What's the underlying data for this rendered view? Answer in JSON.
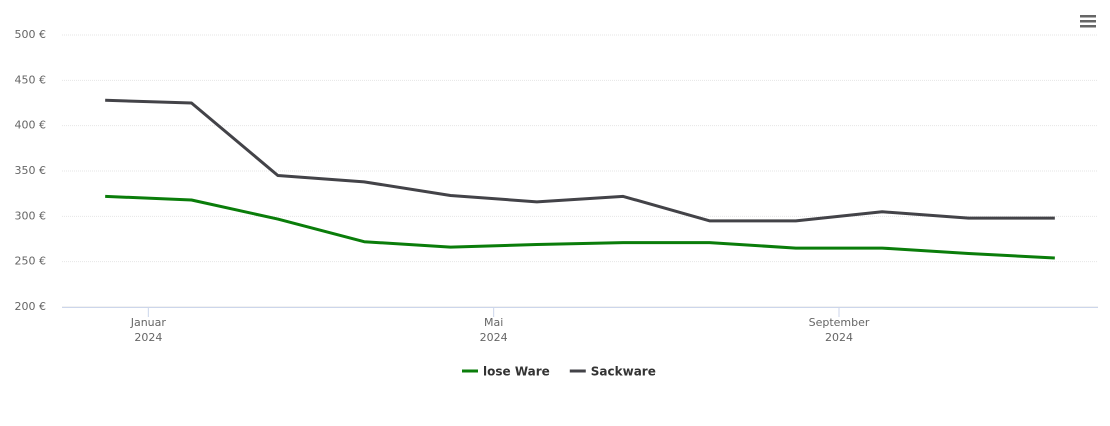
{
  "chart_data": {
    "type": "line",
    "x": [
      "2023-12",
      "2024-01",
      "2024-02",
      "2024-03",
      "2024-04",
      "2024-05",
      "2024-06",
      "2024-07",
      "2024-08",
      "2024-09",
      "2024-10",
      "2024-11"
    ],
    "series": [
      {
        "name": "lose Ware",
        "color": "#0a7d0a",
        "values": [
          322,
          318,
          297,
          272,
          266,
          269,
          271,
          271,
          265,
          265,
          259,
          254
        ]
      },
      {
        "name": "Sackware",
        "color": "#434348",
        "values": [
          428,
          425,
          345,
          338,
          323,
          316,
          322,
          295,
          295,
          305,
          298,
          298
        ]
      }
    ],
    "xlim": [
      "2023-12",
      "2024-11"
    ],
    "xticks": [
      {
        "value": "2024-01",
        "label": [
          "Januar",
          "2024"
        ]
      },
      {
        "value": "2024-05",
        "label": [
          "Mai",
          "2024"
        ]
      },
      {
        "value": "2024-09",
        "label": [
          "September",
          "2024"
        ]
      }
    ],
    "ylim": [
      200,
      500
    ],
    "yticks": [
      {
        "value": 200,
        "label": "200 €"
      },
      {
        "value": 250,
        "label": "250 €"
      },
      {
        "value": 300,
        "label": "300 €"
      },
      {
        "value": 350,
        "label": "350 €"
      },
      {
        "value": 400,
        "label": "400 €"
      },
      {
        "value": 450,
        "label": "450 €"
      },
      {
        "value": 500,
        "label": "500 €"
      }
    ],
    "grid": true,
    "legend": "bottom"
  }
}
